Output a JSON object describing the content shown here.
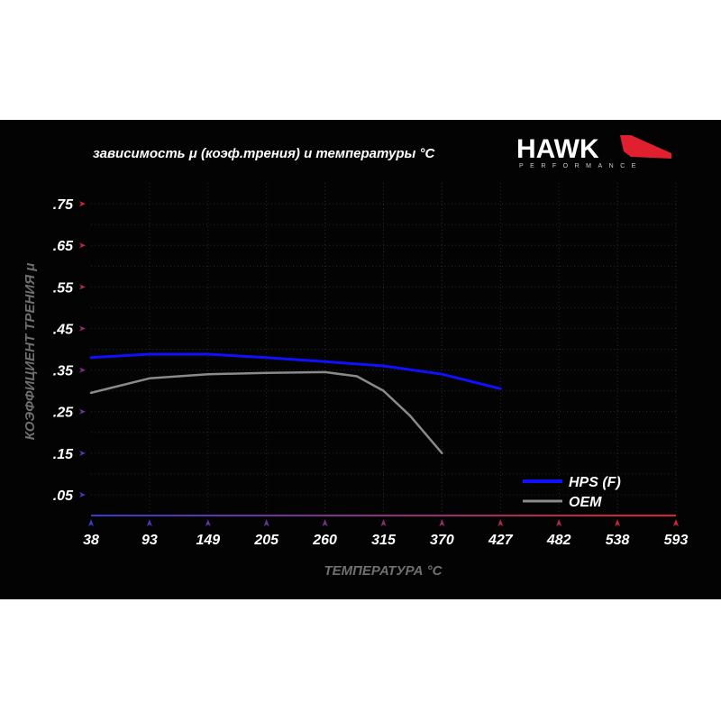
{
  "logo": {
    "text": "HAWK",
    "subtext": "PERFORMANCE",
    "accent": "#e0202e"
  },
  "chart_data": {
    "type": "line",
    "title": "зависимость μ (коэф.трения) и температуры °C",
    "xlabel": "ТЕМПЕРАТУРА °C",
    "ylabel": "КОЭФФИЦИЕНТ ТРЕНИЯ μ",
    "x_ticks": [
      38,
      93,
      149,
      205,
      260,
      315,
      370,
      427,
      482,
      538,
      593
    ],
    "y_ticks": [
      ".75",
      ".65",
      ".55",
      ".45",
      ".35",
      ".25",
      ".15",
      ".05"
    ],
    "y_tick_values": [
      0.75,
      0.65,
      0.55,
      0.45,
      0.35,
      0.25,
      0.15,
      0.05
    ],
    "ylim": [
      0,
      0.8
    ],
    "grid": true,
    "legend_placement": "bottom-right",
    "series": [
      {
        "name": "HPS (F)",
        "color": "#1010ff",
        "x": [
          38,
          93,
          149,
          205,
          260,
          315,
          370,
          427
        ],
        "y": [
          0.38,
          0.388,
          0.388,
          0.38,
          0.37,
          0.36,
          0.34,
          0.305
        ]
      },
      {
        "name": "OEM",
        "color": "#8a8a8a",
        "x": [
          38,
          93,
          149,
          205,
          260,
          290,
          315,
          340,
          370
        ],
        "y": [
          0.295,
          0.33,
          0.34,
          0.343,
          0.345,
          0.335,
          0.3,
          0.24,
          0.15
        ]
      }
    ]
  }
}
